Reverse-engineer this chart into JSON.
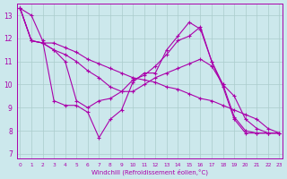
{
  "xlabel": "Windchill (Refroidissement éolien,°C)",
  "ylabel": "",
  "bg_color": "#cce8ec",
  "line_color": "#aa00aa",
  "grid_color": "#aacccc",
  "xmin": 0,
  "xmax": 23,
  "ymin": 6.8,
  "ymax": 13.5,
  "yticks": [
    7,
    8,
    9,
    10,
    11,
    12,
    13
  ],
  "xticks": [
    0,
    1,
    2,
    3,
    4,
    5,
    6,
    7,
    8,
    9,
    10,
    11,
    12,
    13,
    14,
    15,
    16,
    17,
    18,
    19,
    20,
    21,
    22,
    23
  ],
  "series": [
    [
      13.3,
      13.0,
      11.9,
      9.3,
      9.1,
      9.1,
      8.8,
      7.7,
      8.5,
      8.9,
      10.1,
      10.5,
      10.5,
      11.5,
      12.1,
      12.7,
      12.4,
      11.0,
      9.9,
      8.5,
      7.9,
      7.9,
      7.9,
      7.9
    ],
    [
      13.3,
      11.9,
      11.8,
      11.5,
      11.0,
      9.3,
      9.0,
      9.3,
      9.4,
      9.7,
      10.2,
      10.4,
      10.8,
      11.3,
      11.9,
      12.1,
      12.5,
      11.0,
      10.0,
      8.6,
      8.0,
      7.9,
      7.9,
      7.9
    ],
    [
      13.3,
      11.9,
      11.8,
      11.5,
      11.3,
      11.0,
      10.6,
      10.3,
      9.9,
      9.7,
      9.7,
      10.0,
      10.3,
      10.5,
      10.7,
      10.9,
      11.1,
      10.8,
      10.0,
      9.5,
      8.5,
      8.1,
      7.9,
      7.9
    ],
    [
      13.3,
      11.9,
      11.8,
      11.8,
      11.6,
      11.4,
      11.1,
      10.9,
      10.7,
      10.5,
      10.3,
      10.2,
      10.1,
      9.9,
      9.8,
      9.6,
      9.4,
      9.3,
      9.1,
      8.9,
      8.7,
      8.5,
      8.1,
      7.9
    ]
  ]
}
